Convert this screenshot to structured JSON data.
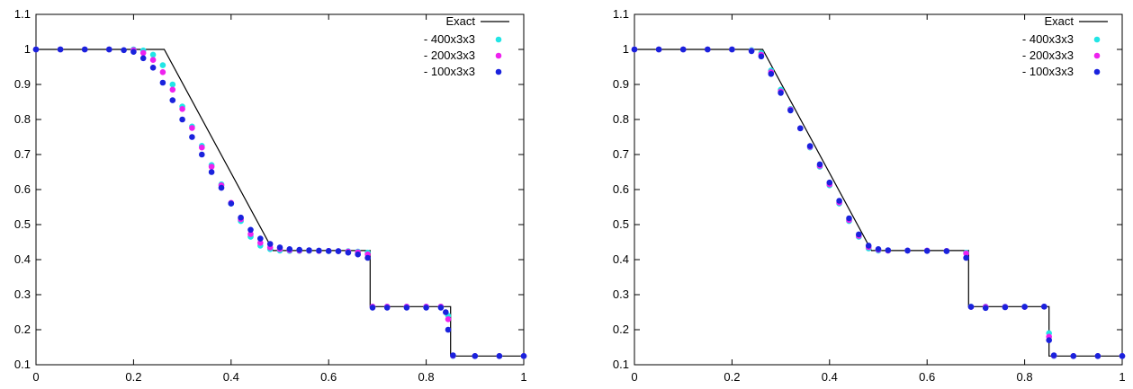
{
  "chart_data": [
    {
      "type": "line",
      "xlim": [
        0,
        1
      ],
      "ylim": [
        0.1,
        1.1
      ],
      "xticks": [
        "0",
        "0.2",
        "0.4",
        "0.6",
        "0.8",
        "1"
      ],
      "yticks": [
        "0.1",
        "0.2",
        "0.3",
        "0.4",
        "0.5",
        "0.6",
        "0.7",
        "0.8",
        "0.9",
        "1",
        "1.1"
      ],
      "legend_position": "top-right",
      "exact": {
        "name": "Exact",
        "color": "#000000",
        "x": [
          0,
          0.263,
          0.486,
          0.685,
          0.685,
          0.85,
          0.85,
          1
        ],
        "y": [
          1,
          1,
          0.426,
          0.426,
          0.266,
          0.266,
          0.125,
          0.125
        ]
      },
      "series": [
        {
          "name": "- 400x3x3",
          "color": "#22e5e5",
          "x": [
            0,
            0.05,
            0.1,
            0.15,
            0.2,
            0.22,
            0.24,
            0.26,
            0.28,
            0.3,
            0.32,
            0.34,
            0.36,
            0.38,
            0.4,
            0.42,
            0.44,
            0.46,
            0.48,
            0.5,
            0.52,
            0.54,
            0.56,
            0.58,
            0.6,
            0.62,
            0.64,
            0.66,
            0.68,
            0.69,
            0.72,
            0.76,
            0.8,
            0.83,
            0.845,
            0.855,
            0.9,
            0.95,
            1
          ],
          "y": [
            1,
            1,
            1,
            1,
            1,
            0.997,
            0.985,
            0.955,
            0.9,
            0.837,
            0.78,
            0.725,
            0.67,
            0.615,
            0.56,
            0.51,
            0.465,
            0.44,
            0.43,
            0.426,
            0.425,
            0.425,
            0.425,
            0.425,
            0.424,
            0.424,
            0.424,
            0.423,
            0.42,
            0.266,
            0.266,
            0.266,
            0.266,
            0.266,
            0.24,
            0.125,
            0.125,
            0.125,
            0.125
          ]
        },
        {
          "name": "- 200x3x3",
          "color": "#ee22ee",
          "x": [
            0,
            0.05,
            0.1,
            0.15,
            0.2,
            0.22,
            0.24,
            0.26,
            0.28,
            0.3,
            0.32,
            0.34,
            0.36,
            0.38,
            0.4,
            0.42,
            0.44,
            0.46,
            0.48,
            0.5,
            0.52,
            0.54,
            0.56,
            0.58,
            0.6,
            0.62,
            0.64,
            0.66,
            0.68,
            0.69,
            0.72,
            0.76,
            0.8,
            0.83,
            0.845,
            0.855,
            0.9,
            0.95,
            1
          ],
          "y": [
            1,
            1,
            1,
            1,
            0.998,
            0.99,
            0.97,
            0.935,
            0.885,
            0.83,
            0.776,
            0.72,
            0.665,
            0.612,
            0.562,
            0.515,
            0.473,
            0.448,
            0.435,
            0.43,
            0.427,
            0.426,
            0.426,
            0.425,
            0.425,
            0.424,
            0.423,
            0.421,
            0.415,
            0.266,
            0.266,
            0.266,
            0.266,
            0.266,
            0.23,
            0.126,
            0.125,
            0.125,
            0.125
          ]
        },
        {
          "name": "- 100x3x3",
          "color": "#1a22dd",
          "x": [
            0,
            0.05,
            0.1,
            0.15,
            0.18,
            0.2,
            0.22,
            0.24,
            0.26,
            0.28,
            0.3,
            0.32,
            0.34,
            0.36,
            0.38,
            0.4,
            0.42,
            0.44,
            0.46,
            0.48,
            0.5,
            0.52,
            0.54,
            0.56,
            0.58,
            0.6,
            0.62,
            0.64,
            0.66,
            0.68,
            0.69,
            0.72,
            0.76,
            0.8,
            0.83,
            0.84,
            0.845,
            0.855,
            0.9,
            0.95,
            1
          ],
          "y": [
            1,
            1,
            1,
            1,
            0.998,
            0.993,
            0.975,
            0.948,
            0.905,
            0.855,
            0.8,
            0.75,
            0.7,
            0.65,
            0.605,
            0.56,
            0.52,
            0.485,
            0.46,
            0.445,
            0.435,
            0.43,
            0.428,
            0.427,
            0.426,
            0.425,
            0.424,
            0.42,
            0.415,
            0.405,
            0.263,
            0.263,
            0.263,
            0.263,
            0.263,
            0.25,
            0.2,
            0.127,
            0.125,
            0.125,
            0.125
          ]
        }
      ]
    },
    {
      "type": "line",
      "xlim": [
        0,
        1
      ],
      "ylim": [
        0.1,
        1.1
      ],
      "xticks": [
        "0",
        "0.2",
        "0.4",
        "0.6",
        "0.8",
        "1"
      ],
      "yticks": [
        "0.1",
        "0.2",
        "0.3",
        "0.4",
        "0.5",
        "0.6",
        "0.7",
        "0.8",
        "0.9",
        "1",
        "1.1"
      ],
      "legend_position": "top-right",
      "exact": {
        "name": "Exact",
        "color": "#000000",
        "x": [
          0,
          0.263,
          0.486,
          0.685,
          0.685,
          0.85,
          0.85,
          1
        ],
        "y": [
          1,
          1,
          0.426,
          0.426,
          0.266,
          0.266,
          0.125,
          0.125
        ]
      },
      "series": [
        {
          "name": "- 400x3x3",
          "color": "#22e5e5",
          "x": [
            0,
            0.05,
            0.1,
            0.15,
            0.2,
            0.24,
            0.26,
            0.28,
            0.3,
            0.32,
            0.34,
            0.36,
            0.38,
            0.4,
            0.42,
            0.44,
            0.46,
            0.48,
            0.5,
            0.52,
            0.56,
            0.6,
            0.64,
            0.68,
            0.69,
            0.72,
            0.76,
            0.8,
            0.84,
            0.85,
            0.86,
            0.9,
            0.95,
            1
          ],
          "y": [
            1,
            1,
            1,
            1,
            1,
            0.998,
            0.99,
            0.94,
            0.885,
            0.83,
            0.775,
            0.72,
            0.665,
            0.612,
            0.56,
            0.51,
            0.465,
            0.432,
            0.426,
            0.426,
            0.426,
            0.426,
            0.425,
            0.42,
            0.266,
            0.266,
            0.266,
            0.266,
            0.266,
            0.19,
            0.125,
            0.125,
            0.125,
            0.125
          ]
        },
        {
          "name": "- 200x3x3",
          "color": "#ee22ee",
          "x": [
            0,
            0.05,
            0.1,
            0.15,
            0.2,
            0.24,
            0.26,
            0.28,
            0.3,
            0.32,
            0.34,
            0.36,
            0.38,
            0.4,
            0.42,
            0.44,
            0.46,
            0.48,
            0.5,
            0.52,
            0.56,
            0.6,
            0.64,
            0.68,
            0.69,
            0.72,
            0.76,
            0.8,
            0.84,
            0.85,
            0.86,
            0.9,
            0.95,
            1
          ],
          "y": [
            1,
            1,
            1,
            1,
            1,
            0.996,
            0.985,
            0.935,
            0.88,
            0.828,
            0.775,
            0.722,
            0.668,
            0.615,
            0.563,
            0.513,
            0.468,
            0.436,
            0.428,
            0.426,
            0.426,
            0.426,
            0.425,
            0.418,
            0.265,
            0.265,
            0.265,
            0.265,
            0.266,
            0.18,
            0.126,
            0.125,
            0.125,
            0.125
          ]
        },
        {
          "name": "- 100x3x3",
          "color": "#1a22dd",
          "x": [
            0,
            0.05,
            0.1,
            0.15,
            0.2,
            0.24,
            0.26,
            0.28,
            0.3,
            0.32,
            0.34,
            0.36,
            0.38,
            0.4,
            0.42,
            0.44,
            0.46,
            0.48,
            0.5,
            0.52,
            0.56,
            0.6,
            0.64,
            0.68,
            0.69,
            0.72,
            0.76,
            0.8,
            0.84,
            0.85,
            0.86,
            0.9,
            0.95,
            1
          ],
          "y": [
            1,
            1,
            1,
            1,
            1,
            0.995,
            0.98,
            0.93,
            0.876,
            0.826,
            0.775,
            0.724,
            0.672,
            0.62,
            0.568,
            0.518,
            0.472,
            0.44,
            0.43,
            0.427,
            0.426,
            0.425,
            0.424,
            0.405,
            0.265,
            0.262,
            0.264,
            0.265,
            0.266,
            0.17,
            0.127,
            0.125,
            0.125,
            0.125
          ]
        }
      ]
    }
  ]
}
